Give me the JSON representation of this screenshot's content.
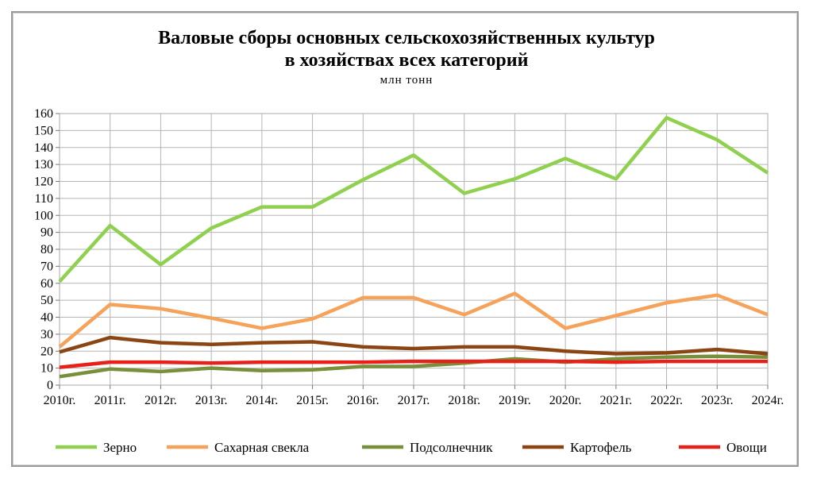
{
  "chart_data": {
    "type": "line",
    "title": "Валовые сборы основных сельскохозяйственных культур",
    "title_line2": "в хозяйствах всех категорий",
    "subtitle": "млн тонн",
    "xlabel": "",
    "ylabel": "",
    "ylim": [
      0,
      160
    ],
    "yticks": [
      "0",
      "10",
      "20",
      "30",
      "40",
      "50",
      "60",
      "70",
      "80",
      "90",
      "100",
      "110",
      "120",
      "130",
      "140",
      "150",
      "160"
    ],
    "categories": [
      "2010г.",
      "2011г.",
      "2012г.",
      "2013г.",
      "2014г.",
      "2015г.",
      "2016г.",
      "2017г.",
      "2018г.",
      "2019г.",
      "2020г.",
      "2021г.",
      "2022г.",
      "2023г.",
      "2024г."
    ],
    "grid": true,
    "legend_position": "bottom",
    "series": [
      {
        "name": "Зерно",
        "color": "#8fd14f",
        "values": [
          61,
          94,
          71,
          92.5,
          105,
          105,
          121,
          135.5,
          113,
          121.5,
          133.5,
          121.5,
          157.5,
          144.5,
          125
        ]
      },
      {
        "name": "Сахарная свекла",
        "color": "#f5a35a",
        "values": [
          22.5,
          47.5,
          45,
          39.5,
          33.5,
          39,
          51.5,
          51.5,
          41.5,
          54,
          33.5,
          41,
          48.5,
          53,
          41.5
        ]
      },
      {
        "name": "Подсолнечник",
        "color": "#78903a",
        "values": [
          5,
          9.5,
          8,
          10,
          8.5,
          9,
          11,
          11,
          13,
          15.5,
          13.5,
          15.5,
          16.5,
          17,
          16.5
        ]
      },
      {
        "name": "Картофель",
        "color": "#8b4513",
        "values": [
          19.5,
          28,
          25,
          24,
          25,
          25.5,
          22.5,
          21.5,
          22.5,
          22.5,
          20,
          18.5,
          19,
          21,
          18.5
        ]
      },
      {
        "name": "Овощи",
        "color": "#e8201a",
        "values": [
          10.5,
          13.5,
          13.5,
          13,
          13.5,
          13.5,
          13.5,
          14,
          14,
          14,
          14,
          13.5,
          14,
          14,
          14
        ]
      }
    ]
  }
}
